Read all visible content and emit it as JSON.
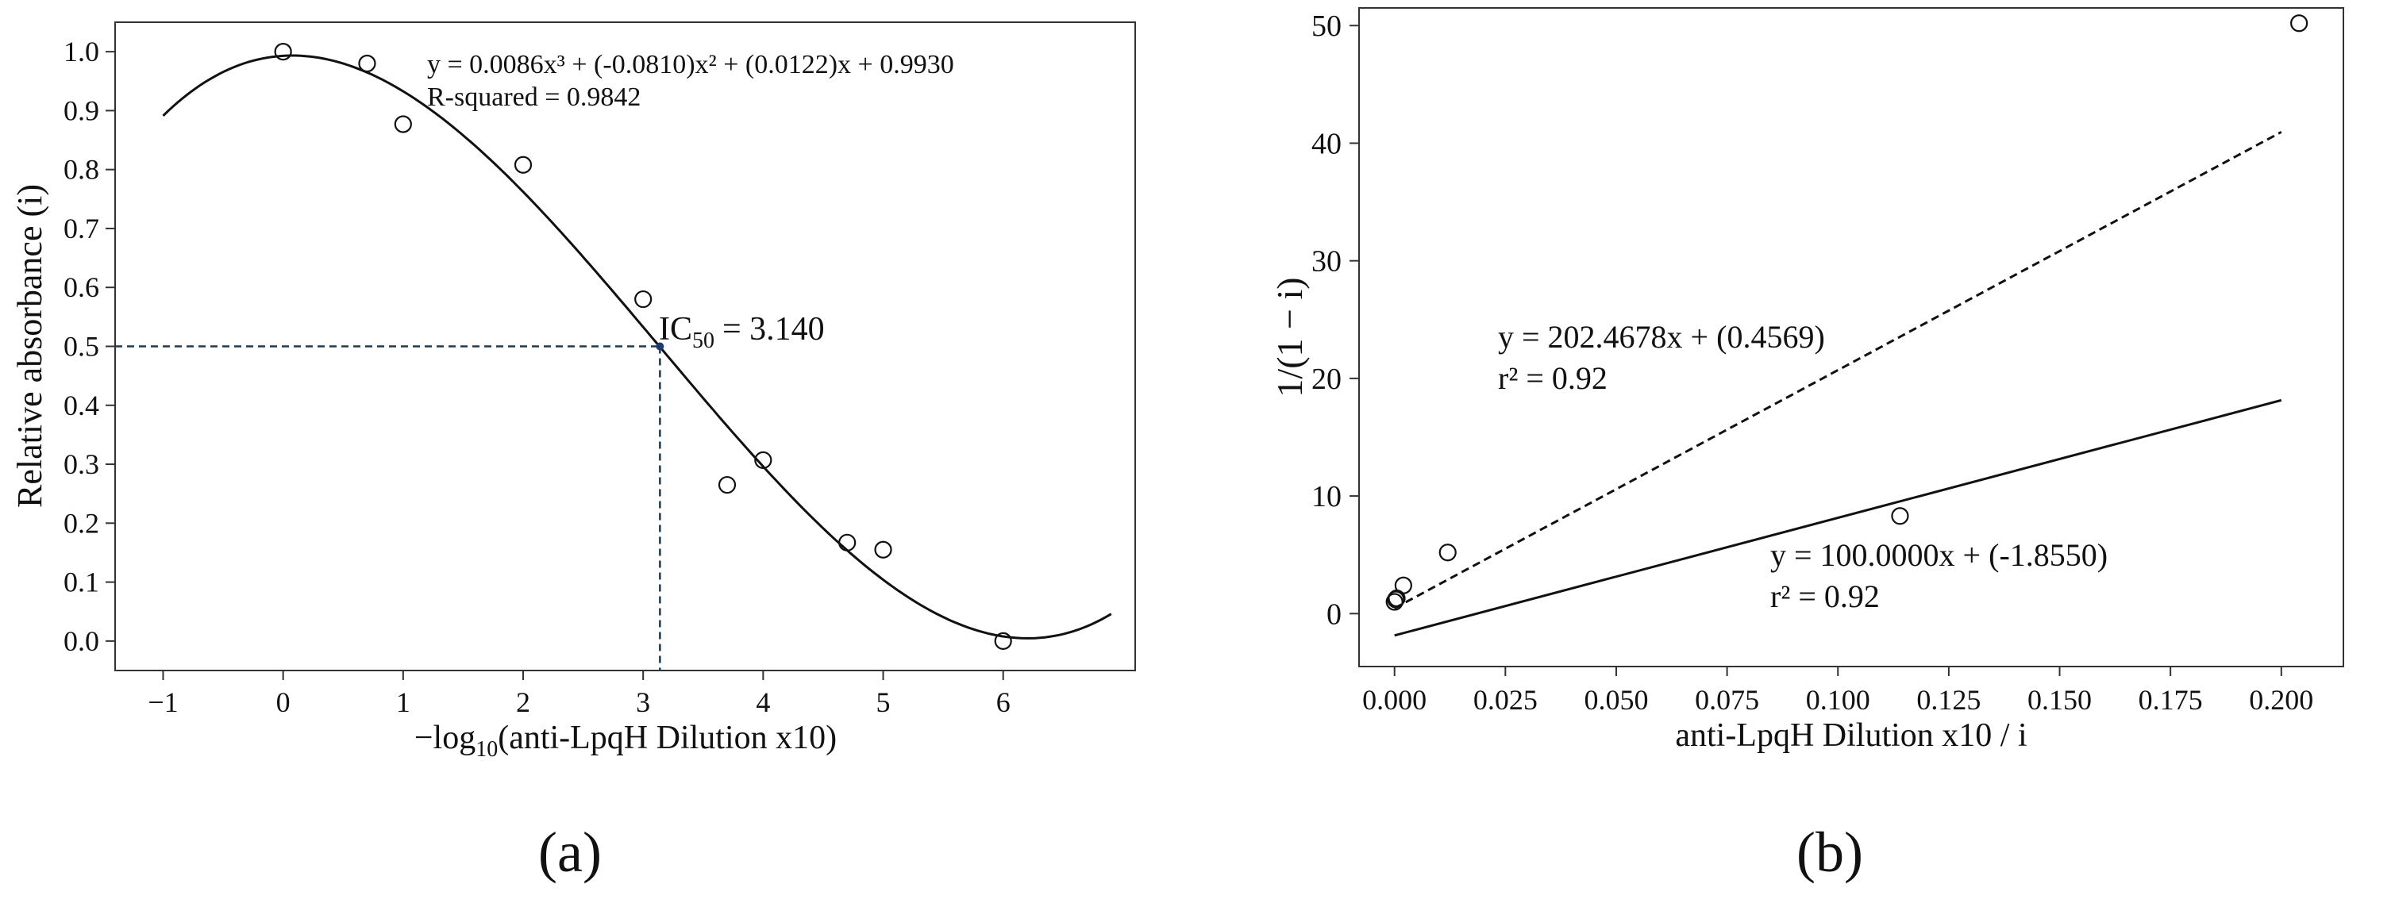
{
  "panels": [
    {
      "label": "(a)"
    },
    {
      "label": "(b)"
    }
  ],
  "chart_data": [
    {
      "type": "scatter",
      "xlabel_prefix": "−log",
      "xlabel_sub": "10",
      "xlabel_rest": "(anti-LpqH Dilution x10)",
      "ylabel": "Relative absorbance (i)",
      "xlim": [
        -1.4,
        7.1
      ],
      "ylim": [
        -0.05,
        1.05
      ],
      "xticks": [
        -1,
        0,
        1,
        2,
        3,
        4,
        5,
        6
      ],
      "yticks": [
        0.0,
        0.1,
        0.2,
        0.3,
        0.4,
        0.5,
        0.6,
        0.7,
        0.8,
        0.9,
        1.0
      ],
      "series": [
        {
          "kind": "points",
          "x": [
            0,
            0.7,
            1.0,
            2.0,
            3.0,
            3.7,
            4.0,
            4.7,
            5.0,
            6.0
          ],
          "y": [
            1.0,
            0.98,
            0.877,
            0.808,
            0.58,
            0.265,
            0.307,
            0.167,
            0.155,
            0.0
          ]
        },
        {
          "kind": "fit",
          "style": "solid",
          "equation": "y = 0.0086x³ + (-0.0810)x² + (0.0122)x + 0.9930",
          "coefficients": [
            0.0086,
            -0.081,
            0.0122,
            0.993
          ],
          "x_range": [
            -1,
            6.9
          ]
        }
      ],
      "annotations": {
        "equation": "y = 0.0086x³ + (-0.0810)x² + (0.0122)x + 0.9930",
        "r_squared": "R-squared = 0.9842",
        "ic50_prefix": "IC",
        "ic50_sub": "50",
        "ic50_value": "= 3.140",
        "ic50_x": 3.14,
        "ic50_y": 0.5
      }
    },
    {
      "type": "scatter",
      "xlabel": "anti-LpqH Dilution x10 / i",
      "ylabel": "1/(1 − i)",
      "xlim": [
        -0.008,
        0.214
      ],
      "ylim": [
        -4.5,
        51.5
      ],
      "xticks": [
        "0.000",
        "0.025",
        "0.050",
        "0.075",
        "0.100",
        "0.125",
        "0.150",
        "0.175",
        "0.200"
      ],
      "xtick_values": [
        0,
        0.025,
        0.05,
        0.075,
        0.1,
        0.125,
        0.15,
        0.175,
        0.2
      ],
      "yticks": [
        0,
        10,
        20,
        30,
        40,
        50
      ],
      "series": [
        {
          "kind": "points",
          "x": [
            0.0,
            0.0003,
            0.0005,
            0.002,
            0.012,
            0.114,
            0.204
          ],
          "y": [
            1.0,
            1.2,
            1.3,
            2.4,
            5.2,
            8.3,
            50.2
          ]
        },
        {
          "kind": "fit",
          "style": "dashed",
          "slope": 202.4678,
          "intercept": 0.4569,
          "x_range": [
            0,
            0.2
          ]
        },
        {
          "kind": "fit",
          "style": "solid",
          "slope": 100.0,
          "intercept": -1.855,
          "x_range": [
            0,
            0.2
          ]
        }
      ],
      "annotations": {
        "dashed_eq": "y = 202.4678x + (0.4569)",
        "dashed_r2": "r² = 0.92",
        "solid_eq": "y = 100.0000x + (-1.8550)",
        "solid_r2": "r² = 0.92"
      }
    }
  ]
}
